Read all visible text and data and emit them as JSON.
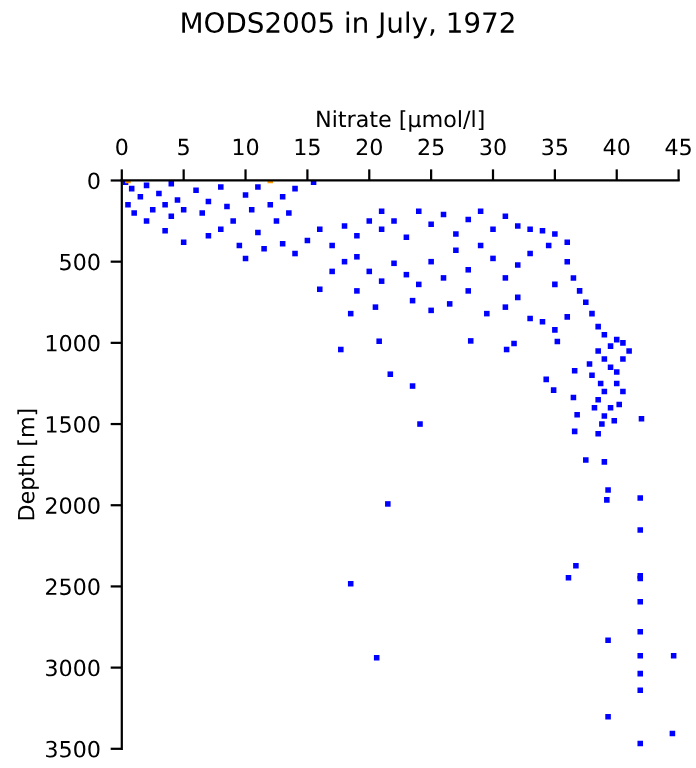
{
  "chart_data": {
    "type": "scatter",
    "title": "MODS2005 in July, 1972",
    "xlabel": "Nitrate [µmol/l]",
    "ylabel": "Depth [m]",
    "xlim": [
      0,
      45
    ],
    "xticks": [
      0,
      5,
      10,
      15,
      20,
      25,
      30,
      35,
      40,
      45
    ],
    "ylim": [
      3500,
      0
    ],
    "yticks": [
      0,
      500,
      1000,
      1500,
      2000,
      2500,
      3000,
      3500
    ],
    "grid": false,
    "legend": false,
    "marker": "square",
    "series": [
      {
        "color": "#0000ff",
        "x": [
          0.3,
          0.8,
          1.5,
          0.5,
          2,
          2.5,
          1,
          3,
          3.5,
          4,
          4.5,
          5,
          2,
          6,
          6.5,
          7,
          8,
          8.5,
          9,
          10,
          10.5,
          11,
          12,
          13,
          13.5,
          14,
          15.5,
          12.5,
          11,
          8,
          4,
          5,
          3.5,
          7,
          9.5,
          10,
          11.5,
          13,
          14,
          15,
          16,
          17,
          18,
          19,
          20,
          21,
          18,
          17,
          19,
          21,
          22,
          23,
          24,
          25,
          26,
          27,
          28,
          29,
          30,
          31,
          32,
          33,
          34,
          35,
          36,
          34.5,
          33,
          32,
          31,
          30,
          29,
          28,
          27,
          26,
          25,
          24,
          23,
          22,
          21,
          20,
          19,
          16,
          23.5,
          25,
          26.5,
          28,
          29.5,
          31,
          32,
          33,
          34,
          35,
          36,
          36.5,
          37,
          37.5,
          38,
          38.5,
          39,
          40,
          40.5,
          35,
          36,
          18.5,
          20.5,
          17.7,
          20.8,
          21.7,
          23.5,
          24.1,
          21.5,
          18.5,
          20.6,
          28.2,
          31.1,
          31.7,
          35.2,
          34.3,
          34.9,
          36.6,
          36.5,
          36.8,
          36.6,
          37.5,
          39.0,
          39.3,
          39.2,
          41.9,
          41.9,
          41.9,
          41.9,
          36.7,
          36.1,
          41.9,
          41.9,
          39.3,
          41.9,
          44.6,
          41.9,
          41.9,
          39.3,
          41.9,
          44.5,
          42.0,
          38.5,
          39,
          39.5,
          38,
          40,
          39,
          38.5,
          39.5,
          39,
          38.8,
          38.5,
          40.5,
          41,
          40,
          37.8,
          40.5,
          38.2,
          39.8,
          39.5,
          38.7,
          40.2
        ],
        "values": [
          10,
          50,
          100,
          150,
          30,
          180,
          200,
          80,
          150,
          20,
          120,
          180,
          250,
          60,
          200,
          130,
          40,
          160,
          250,
          90,
          180,
          40,
          150,
          100,
          200,
          50,
          10,
          250,
          320,
          300,
          220,
          380,
          310,
          340,
          400,
          480,
          420,
          390,
          450,
          370,
          300,
          400,
          280,
          340,
          250,
          190,
          500,
          560,
          470,
          300,
          250,
          350,
          190,
          270,
          210,
          330,
          240,
          190,
          300,
          220,
          280,
          300,
          310,
          330,
          380,
          400,
          450,
          520,
          600,
          480,
          400,
          550,
          430,
          600,
          500,
          640,
          580,
          510,
          620,
          560,
          680,
          670,
          740,
          800,
          760,
          680,
          820,
          780,
          720,
          850,
          870,
          640,
          500,
          600,
          680,
          750,
          820,
          900,
          950,
          980,
          1000,
          920,
          840,
          820,
          780,
          1041,
          990,
          1193,
          1266,
          1500,
          1992,
          2484,
          2939,
          988,
          1041,
          1004,
          992,
          1225,
          1291,
          1172,
          1336,
          1443,
          1545,
          1721,
          1733,
          1906,
          1967,
          1955,
          2152,
          2435,
          2451,
          2373,
          2447,
          2594,
          2779,
          2832,
          2927,
          2927,
          3037,
          3140,
          3303,
          3467,
          3406,
          1467,
          1050,
          1100,
          1150,
          1200,
          1250,
          1300,
          1350,
          1400,
          1450,
          1500,
          1560,
          1100,
          1050,
          1180,
          1130,
          1300,
          1400,
          1480,
          1020,
          1250,
          1380
        ]
      },
      {
        "color": "#ff9900",
        "x": [
          0.5,
          12
        ],
        "values": [
          0,
          0
        ]
      }
    ]
  }
}
